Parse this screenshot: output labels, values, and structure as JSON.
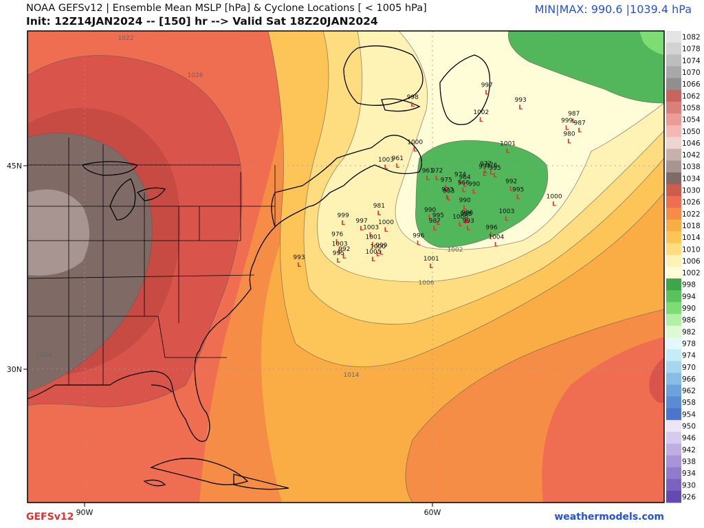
{
  "header": {
    "line1": "NOAA GEFSv12 | Ensemble Mean MSLP [hPa] & Cyclone Locations [ < 1005 hPa]",
    "line2": "Init: 12Z14JAN2024 -- [150] hr --> Valid Sat 18Z20JAN2024",
    "minmax": "MIN|MAX: 990.6 |1039.4 hPa"
  },
  "footer": {
    "model": "GEFSv12",
    "site": "weathermodels.com"
  },
  "axes": {
    "lat_labels": [
      "45N",
      "30N"
    ],
    "lon_labels": [
      "90W",
      "60W"
    ]
  },
  "colorbar": {
    "levels": [
      "1082",
      "1078",
      "1074",
      "1070",
      "1066",
      "1062",
      "1058",
      "1054",
      "1050",
      "1046",
      "1042",
      "1038",
      "1034",
      "1030",
      "1026",
      "1022",
      "1018",
      "1014",
      "1010",
      "1006",
      "1002",
      "998",
      "994",
      "990",
      "986",
      "982",
      "978",
      "974",
      "970",
      "966",
      "962",
      "958",
      "954",
      "950",
      "946",
      "942",
      "938",
      "934",
      "930",
      "926"
    ],
    "colors": [
      "#e4e4e4",
      "#d2d2d2",
      "#bdbdbd",
      "#a8a8a8",
      "#8f8f8f",
      "#c8635e",
      "#d9807b",
      "#ee9a96",
      "#f4b7b3",
      "#f0d4d2",
      "#c8b0ab",
      "#a89592",
      "#7f6a66",
      "#cc5c4c",
      "#ef6d50",
      "#f58d46",
      "#fbad45",
      "#fdc558",
      "#fedd80",
      "#fff2b5",
      "#fffcd8",
      "#3da64a",
      "#59c25c",
      "#7ddc74",
      "#b3f0a6",
      "#dcfbd0",
      "#e2f8fc",
      "#c6ecf8",
      "#a7d6f0",
      "#88bde6",
      "#6da3dd",
      "#5a8bd4",
      "#4d74cc",
      "#ece5f6",
      "#d6cbee",
      "#bfaee3",
      "#a994d8",
      "#917bcd",
      "#7b62c0",
      "#6448b4"
    ]
  },
  "contour_labels": [
    "1022",
    "1026",
    "1034",
    "1014",
    "1006",
    "1002"
  ],
  "cyclones": [
    {
      "v": "997",
      "lon": -55.3,
      "lat": 50.5
    },
    {
      "v": "993",
      "lon": -52.4,
      "lat": 49.4
    },
    {
      "v": "1002",
      "lon": -55.8,
      "lat": 48.5
    },
    {
      "v": "987",
      "lon": -47.8,
      "lat": 48.4
    },
    {
      "v": "999",
      "lon": -48.4,
      "lat": 47.9
    },
    {
      "v": "987",
      "lon": -47.3,
      "lat": 47.7
    },
    {
      "v": "980",
      "lon": -48.2,
      "lat": 46.9
    },
    {
      "v": "1001",
      "lon": -53.5,
      "lat": 46.2
    },
    {
      "v": "998",
      "lon": -61.7,
      "lat": 49.6
    },
    {
      "v": "1000",
      "lon": -61.5,
      "lat": 46.3
    },
    {
      "v": "997",
      "lon": -55.5,
      "lat": 44.5
    },
    {
      "v": "1003",
      "lon": -64.0,
      "lat": 45.0
    },
    {
      "v": "961",
      "lon": -63.0,
      "lat": 45.1
    },
    {
      "v": "961",
      "lon": -60.4,
      "lat": 44.2
    },
    {
      "v": "972",
      "lon": -59.6,
      "lat": 44.2
    },
    {
      "v": "975",
      "lon": -58.8,
      "lat": 43.5
    },
    {
      "v": "974",
      "lon": -57.6,
      "lat": 43.9
    },
    {
      "v": "964",
      "lon": -57.2,
      "lat": 43.7
    },
    {
      "v": "966",
      "lon": -57.3,
      "lat": 43.3
    },
    {
      "v": "923",
      "lon": -58.7,
      "lat": 42.8
    },
    {
      "v": "933",
      "lon": -58.6,
      "lat": 42.7
    },
    {
      "v": "990",
      "lon": -57.2,
      "lat": 42.0
    },
    {
      "v": "990",
      "lon": -56.4,
      "lat": 43.2
    },
    {
      "v": "992",
      "lon": -53.2,
      "lat": 43.4
    },
    {
      "v": "995",
      "lon": -52.6,
      "lat": 42.8
    },
    {
      "v": "977",
      "lon": -55.4,
      "lat": 44.7
    },
    {
      "v": "976",
      "lon": -54.9,
      "lat": 44.6
    },
    {
      "v": "995",
      "lon": -54.6,
      "lat": 44.4
    },
    {
      "v": "1000",
      "lon": -49.5,
      "lat": 42.3
    },
    {
      "v": "981",
      "lon": -64.6,
      "lat": 41.6
    },
    {
      "v": "999",
      "lon": -67.7,
      "lat": 40.9
    },
    {
      "v": "997",
      "lon": -66.1,
      "lat": 40.5
    },
    {
      "v": "1000",
      "lon": -64.0,
      "lat": 40.4
    },
    {
      "v": "1003",
      "lon": -65.3,
      "lat": 40.0
    },
    {
      "v": "990",
      "lon": -60.2,
      "lat": 41.3
    },
    {
      "v": "995",
      "lon": -59.5,
      "lat": 40.9
    },
    {
      "v": "987",
      "lon": -59.8,
      "lat": 40.5
    },
    {
      "v": "1000",
      "lon": -57.6,
      "lat": 40.8
    },
    {
      "v": "996",
      "lon": -57.0,
      "lat": 41.1
    },
    {
      "v": "988",
      "lon": -57.1,
      "lat": 41.0
    },
    {
      "v": "993",
      "lon": -56.9,
      "lat": 40.5
    },
    {
      "v": "1003",
      "lon": -53.6,
      "lat": 41.2
    },
    {
      "v": "996",
      "lon": -54.9,
      "lat": 40.0
    },
    {
      "v": "1004",
      "lon": -54.5,
      "lat": 39.3
    },
    {
      "v": "996",
      "lon": -61.2,
      "lat": 39.4
    },
    {
      "v": "976",
      "lon": -68.2,
      "lat": 39.5
    },
    {
      "v": "1003",
      "lon": -68.0,
      "lat": 38.8
    },
    {
      "v": "1001",
      "lon": -65.1,
      "lat": 39.3
    },
    {
      "v": "1000",
      "lon": -64.7,
      "lat": 38.6
    },
    {
      "v": "999",
      "lon": -64.4,
      "lat": 38.7
    },
    {
      "v": "1005",
      "lon": -65.1,
      "lat": 38.2
    },
    {
      "v": "992",
      "lon": -67.6,
      "lat": 38.4
    },
    {
      "v": "995",
      "lon": -68.1,
      "lat": 38.1
    },
    {
      "v": "993",
      "lon": -71.5,
      "lat": 37.8
    },
    {
      "v": "1001",
      "lon": -60.1,
      "lat": 37.7
    }
  ]
}
